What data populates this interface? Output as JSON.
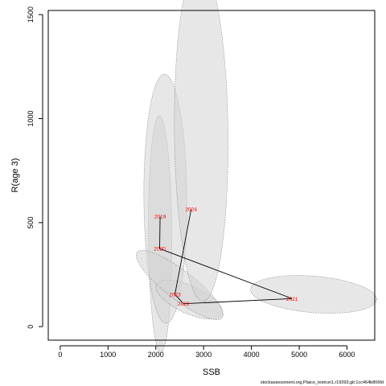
{
  "chart_data": {
    "type": "scatter",
    "title": "",
    "xlabel": "SSB",
    "ylabel": "R(age 3)",
    "xlim": [
      -250,
      6580
    ],
    "ylim": [
      -65,
      1520
    ],
    "xticks": [
      0,
      1000,
      2000,
      3000,
      4000,
      5000,
      6000
    ],
    "yticks": [
      0,
      500,
      1000,
      1500
    ],
    "grid": false,
    "legend": "none",
    "points": [
      {
        "label": "2019",
        "x": 2090,
        "y": 530
      },
      {
        "label": "2020",
        "x": 2080,
        "y": 375
      },
      {
        "label": "2021",
        "x": 4850,
        "y": 135
      },
      {
        "label": "2022",
        "x": 2580,
        "y": 110
      },
      {
        "label": "2023",
        "x": 2400,
        "y": 155
      },
      {
        "label": "2024",
        "x": 2740,
        "y": 565
      }
    ],
    "trajectory": [
      "2019",
      "2020",
      "2021",
      "2022",
      "2023",
      "2024"
    ],
    "confidence_ellipses": [
      {
        "label": "2019",
        "cx": 2090,
        "cy": 445,
        "rx": 570,
        "ry": 245,
        "rot": -88
      },
      {
        "label": "2020",
        "cx": 2200,
        "cy": 615,
        "rx": 600,
        "ry": 450,
        "rot": -86
      },
      {
        "label": "2021",
        "cx": 5300,
        "cy": 155,
        "rx": 1320,
        "ry": 88,
        "rot": -1
      },
      {
        "label": "2022",
        "cx": 2700,
        "cy": 130,
        "rx": 700,
        "ry": 72,
        "rot": -5
      },
      {
        "label": "2023",
        "cx": 2500,
        "cy": 200,
        "rx": 920,
        "ry": 85,
        "rot": -9
      },
      {
        "label": "2024",
        "cx": 2950,
        "cy": 930,
        "rx": 810,
        "ry": 560,
        "rot": -85
      }
    ],
    "colors": {
      "point_label": "#ff0000",
      "trajectory": "#000000",
      "ellipse_fill": "#d3d3d3",
      "ellipse_stroke": "#808080",
      "axis": "#000000"
    }
  },
  "footer": "stockassessment.org,Plaice_testrun1,r19393,git:1cc464b806fd"
}
